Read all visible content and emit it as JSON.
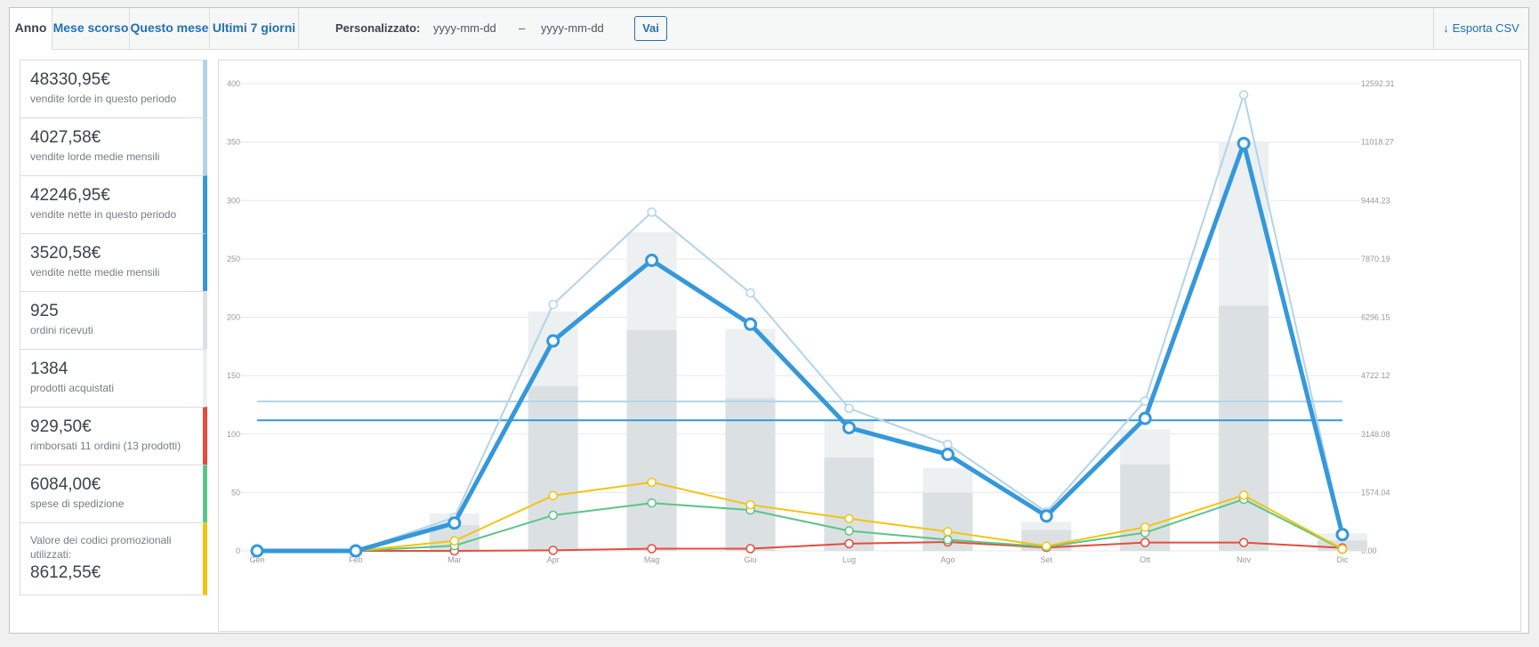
{
  "tabs": [
    "Anno",
    "Mese scorso",
    "Questo mese",
    "Ultimi 7 giorni"
  ],
  "custom_range": {
    "label": "Personalizzato:",
    "from_placeholder": "yyyy-mm-dd",
    "separator": "–",
    "to_placeholder": "yyyy-mm-dd",
    "button": "Vai"
  },
  "export": {
    "icon": "download-arrow-icon",
    "label": "Esporta CSV"
  },
  "legend": [
    {
      "amount": "48330,95€",
      "desc": "vendite lorde in questo periodo",
      "color": "#b1d4ea"
    },
    {
      "amount": "4027,58€",
      "desc": "vendite lorde medie mensili",
      "color": "#b1d4ea"
    },
    {
      "amount": "42246,95€",
      "desc": "vendite nette in questo periodo",
      "color": "#3498db"
    },
    {
      "amount": "3520,58€",
      "desc": "vendite nette medie mensili",
      "color": "#3498db"
    },
    {
      "amount": "925",
      "desc": "ordini ricevuti",
      "color": "#dbe1e3"
    },
    {
      "amount": "1384",
      "desc": "prodotti acquistati",
      "color": "#ecf0f1"
    },
    {
      "amount": "929,50€",
      "desc": "rimborsati 11 ordini (13 prodotti)",
      "color": "#e74c3c"
    },
    {
      "amount": "6084,00€",
      "desc": "spese di spedizione",
      "color": "#5cc488"
    },
    {
      "amount": "8612,55€",
      "desc": "Valore dei codici promozionali utilizzati:",
      "color": "#f1c40f",
      "desc_first": true
    }
  ],
  "chart_data": {
    "type": "bar+line",
    "categories": [
      "Gen",
      "Feb",
      "Mar",
      "Apr",
      "Mag",
      "Giu",
      "Lug",
      "Ago",
      "Set",
      "Ott",
      "Nov",
      "Dic"
    ],
    "left_axis": {
      "min": 0,
      "max": 400,
      "ticks": [
        0,
        50,
        100,
        150,
        200,
        250,
        300,
        350,
        400
      ]
    },
    "right_axis": {
      "min": 0,
      "max": 12592.31,
      "ticks": [
        "0.00",
        "1574.04",
        "3148.08",
        "4722.12",
        "6296.15",
        "7870.19",
        "9444.23",
        "11018.27",
        "12592.31"
      ]
    },
    "bars": [
      {
        "name": "prodotti acquistati",
        "color": "#ecf0f1",
        "axis": "left",
        "values": [
          0,
          0,
          32,
          205,
          273,
          190,
          112,
          71,
          25,
          104,
          350,
          15
        ]
      },
      {
        "name": "ordini ricevuti",
        "color": "#dbe1e3",
        "axis": "left",
        "values": [
          0,
          0,
          22,
          141,
          189,
          131,
          80,
          50,
          18,
          74,
          210,
          9
        ]
      }
    ],
    "lines": [
      {
        "name": "vendite lorde",
        "color": "#b1d4ea",
        "axis": "right",
        "values": [
          0,
          0,
          900,
          6640,
          9130,
          6950,
          3840,
          2870,
          1050,
          4040,
          12290,
          500
        ]
      },
      {
        "name": "vendite nette",
        "color": "#3498db",
        "axis": "right",
        "values": [
          0,
          0,
          750,
          5660,
          7830,
          6110,
          3320,
          2600,
          940,
          3570,
          10980,
          440
        ]
      },
      {
        "name": "codici promozionali",
        "color": "#f1c40f",
        "axis": "right",
        "values": [
          0,
          0,
          270,
          1490,
          1850,
          1240,
          870,
          520,
          130,
          640,
          1500,
          50
        ]
      },
      {
        "name": "spese di spedizione",
        "color": "#5cc488",
        "axis": "right",
        "values": [
          0,
          0,
          140,
          960,
          1290,
          1100,
          540,
          300,
          110,
          490,
          1390,
          40
        ]
      },
      {
        "name": "rimborsati",
        "color": "#e74c3c",
        "axis": "right",
        "values": [
          0,
          0,
          0,
          15,
          60,
          60,
          195,
          240,
          90,
          225,
          225,
          80
        ]
      }
    ],
    "averages": [
      {
        "name": "vendite lorde medie mensili",
        "color": "#b1d4ea",
        "value": 4027.58
      },
      {
        "name": "vendite nette medie mensili",
        "color": "#3498db",
        "value": 3520.58
      }
    ],
    "grid": true
  }
}
